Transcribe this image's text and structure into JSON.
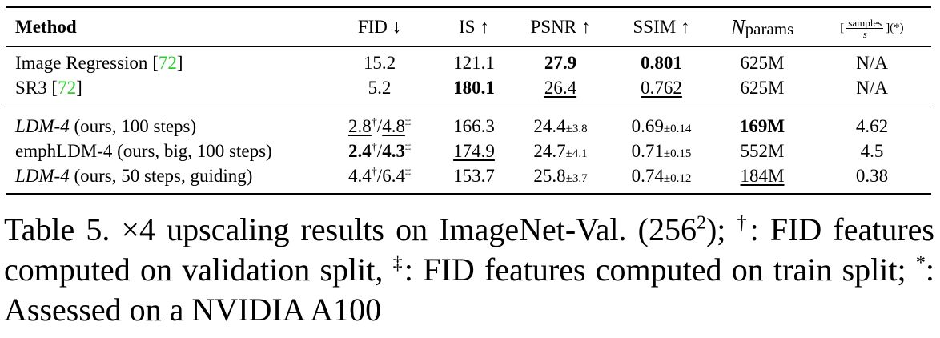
{
  "table": {
    "headers": {
      "method": "Method",
      "fid": "FID ↓",
      "is": "IS ↑",
      "psnr": "PSNR ↑",
      "ssim": "SSIM ↑",
      "nparams_main": "N",
      "nparams_sub": "params",
      "speed_open": "[",
      "speed_num": "samples",
      "speed_den": "s",
      "speed_close": "](*)"
    },
    "rows": [
      {
        "method_main": "Image Regression ",
        "cite": "72",
        "method_tail": "",
        "fid": "15.2",
        "is": "121.1",
        "psnr": "27.9",
        "ssim": "0.801",
        "nparams": "625M",
        "speed": "N/A"
      },
      {
        "method_main": "SR3 ",
        "cite": "72",
        "method_tail": "",
        "fid": "5.2",
        "is": "180.1",
        "psnr": "26.4",
        "ssim": "0.762",
        "nparams": "625M",
        "speed": "N/A"
      },
      {
        "method_main": "LDM-4",
        "method_tail": " (ours, 100 steps)",
        "fid_a": "2.8",
        "fid_a_mark": "†",
        "fid_sep": "/",
        "fid_b": "4.8",
        "fid_b_mark": "‡",
        "is": "166.3",
        "psnr": "24.4",
        "psnr_std": "±3.8",
        "ssim": "0.69",
        "ssim_std": "±0.14",
        "nparams": "169M",
        "speed": "4.62"
      },
      {
        "method_main": "emphLDM-4",
        "method_tail": " (ours, big, 100 steps)",
        "fid_a": "2.4",
        "fid_a_mark": "†",
        "fid_sep": "/",
        "fid_b": "4.3",
        "fid_b_mark": "‡",
        "is": "174.9",
        "psnr": "24.7",
        "psnr_std": "±4.1",
        "ssim": "0.71",
        "ssim_std": "±0.15",
        "nparams": "552M",
        "speed": "4.5"
      },
      {
        "method_main": "LDM-4",
        "method_tail": " (ours, 50 steps, guiding)",
        "fid_a": "4.4",
        "fid_a_mark": "†",
        "fid_sep": "/",
        "fid_b": "6.4",
        "fid_b_mark": "‡",
        "is": "153.7",
        "psnr": "25.8",
        "psnr_std": "±3.7",
        "ssim": "0.74",
        "ssim_std": "±0.12",
        "nparams": "184M",
        "speed": "0.38"
      }
    ]
  },
  "caption": {
    "lead": "Table 5.   ×4 upscaling results on ImageNet-Val. (256",
    "sq": "2",
    "p1": "); ",
    "dagger": "†",
    "p2": ": FID features computed on validation split, ",
    "ddagger": "‡",
    "p3": ": FID features computed on train split; ",
    "star": "*",
    "p4": ": Assessed on a NVIDIA A100"
  }
}
